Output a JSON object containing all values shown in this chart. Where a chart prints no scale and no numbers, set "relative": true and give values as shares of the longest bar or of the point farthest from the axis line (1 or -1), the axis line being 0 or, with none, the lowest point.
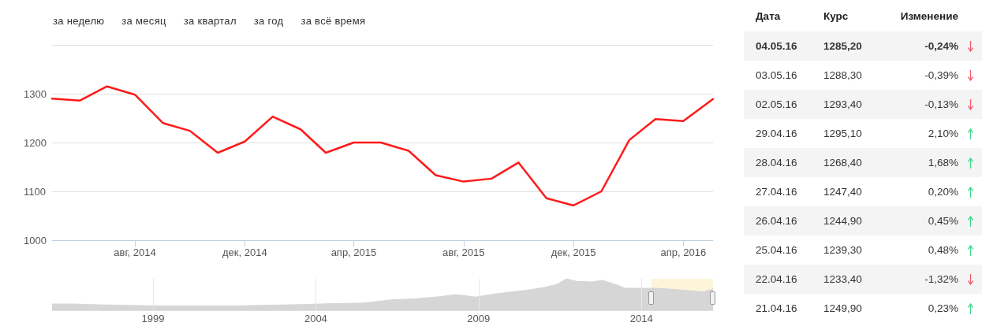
{
  "chart_data": [
    {
      "type": "line",
      "color": "#ff1a1a",
      "marker": "none",
      "line_style": "solid",
      "grid": "y",
      "x": [
        "2014-05-01",
        "2014-06-01",
        "2014-07-01",
        "2014-08-01",
        "2014-09-01",
        "2014-10-01",
        "2014-11-01",
        "2014-12-01",
        "2015-01-01",
        "2015-02-01",
        "2015-03-01",
        "2015-04-01",
        "2015-05-01",
        "2015-06-01",
        "2015-07-01",
        "2015-08-01",
        "2015-09-01",
        "2015-10-01",
        "2015-11-01",
        "2015-12-01",
        "2016-01-01",
        "2016-02-01",
        "2016-03-01",
        "2016-04-01",
        "2016-05-04"
      ],
      "values": [
        1290,
        1286,
        1315,
        1298,
        1240,
        1224,
        1179,
        1202,
        1253,
        1227,
        1179,
        1200,
        1200,
        1183,
        1133,
        1120,
        1126,
        1159,
        1086,
        1071,
        1100,
        1205,
        1248,
        1244,
        1289
      ],
      "xlim": [
        "2014-05-01",
        "2016-05-04"
      ],
      "xticks": [
        {
          "value": "2014-08-01",
          "label": "авг, 2014"
        },
        {
          "value": "2014-12-01",
          "label": "дек, 2014"
        },
        {
          "value": "2015-04-01",
          "label": "апр, 2015"
        },
        {
          "value": "2015-08-01",
          "label": "авг, 2015"
        },
        {
          "value": "2015-12-01",
          "label": "дек, 2015"
        },
        {
          "value": "2016-04-01",
          "label": "апр, 2016"
        }
      ],
      "ylim": [
        1000,
        1400
      ],
      "yticks": [
        1000,
        1100,
        1200,
        1300,
        {
          "value": 1400,
          "label": null
        }
      ],
      "annotations": [
        "за неделю",
        "за месяц",
        "за квартал",
        "за год",
        "за всё время"
      ]
    },
    {
      "type": "area",
      "relative": true,
      "color": "#d6d6d6",
      "marker": "none",
      "grid": "x",
      "x": [
        1995.9,
        1996.5,
        1997.5,
        1998.5,
        1999.5,
        2000.5,
        2001.5,
        2002.5,
        2003.5,
        2004.5,
        2005.5,
        2006.3,
        2007.0,
        2007.8,
        2008.3,
        2008.9,
        2009.5,
        2010.0,
        2010.5,
        2011.0,
        2011.4,
        2011.7,
        2012.0,
        2012.5,
        2012.8,
        2013.2,
        2013.5,
        2014.0,
        2014.5,
        2015.0,
        2015.5,
        2015.9,
        2016.2
      ],
      "values": [
        0.2,
        0.2,
        0.17,
        0.15,
        0.14,
        0.14,
        0.14,
        0.16,
        0.18,
        0.21,
        0.23,
        0.33,
        0.36,
        0.43,
        0.5,
        0.42,
        0.52,
        0.58,
        0.64,
        0.72,
        0.82,
        1,
        0.92,
        0.9,
        0.95,
        0.82,
        0.7,
        0.7,
        0.7,
        0.66,
        0.62,
        0.58,
        0.68
      ],
      "xlim": [
        1995.9,
        2016.2
      ],
      "xticks": [
        1999,
        2004,
        2009,
        2014
      ],
      "bands": [
        {
          "axis": "x",
          "from": 2014.3,
          "to": 2016.2,
          "color": "#fbf1cc"
        }
      ]
    },
    {
      "type": "other",
      "annotations": [
        "Дата",
        "Курс",
        "Изменение",
        "04.05.16",
        "1285,20",
        "-0,24%",
        "03.05.16",
        "1288,30",
        "-0,39%",
        "02.05.16",
        "1293,40",
        "-0,13%",
        "29.04.16",
        "1295,10",
        "2,10%",
        "28.04.16",
        "1268,40",
        "1,68%",
        "27.04.16",
        "1247,40",
        "0,20%",
        "26.04.16",
        "1244,90",
        "0,45%",
        "25.04.16",
        "1239,30",
        "0,48%",
        "22.04.16",
        "1233,40",
        "-1,32%",
        "21.04.16",
        "1249,90",
        "0,23%"
      ]
    }
  ]
}
